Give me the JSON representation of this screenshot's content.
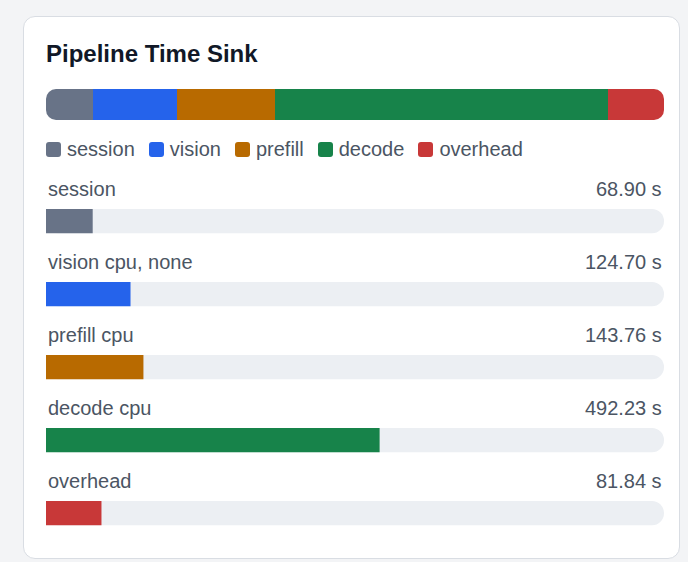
{
  "chart_data": [
    {
      "type": "bar",
      "title": "Pipeline Time Sink",
      "orientation": "horizontal",
      "stacked": true,
      "legend": "bottom",
      "tick_labels": false,
      "xlim": [
        0,
        911.83
      ],
      "categories": [
        null
      ],
      "series": [
        {
          "name": "session",
          "color": "#687387",
          "values": [
            68.9
          ]
        },
        {
          "name": "vision",
          "color": "#2563eb",
          "values": [
            124.7
          ]
        },
        {
          "name": "prefill",
          "color": "#b86a00",
          "values": [
            143.76
          ]
        },
        {
          "name": "decode",
          "color": "#17834a",
          "values": [
            492.23
          ]
        },
        {
          "name": "overhead",
          "color": "#c83838",
          "values": [
            81.84
          ]
        }
      ]
    },
    {
      "type": "bar",
      "orientation": "horizontal",
      "tick_labels": false,
      "data_labels": true,
      "xlim": [
        0,
        911.83
      ],
      "categories": [
        "session",
        "vision cpu, none",
        "prefill cpu",
        "decode cpu",
        "overhead"
      ],
      "values": [
        68.9,
        124.7,
        143.76,
        492.23,
        81.84
      ],
      "value_labels": [
        "68.90 s",
        "124.70 s",
        "143.76 s",
        "492.23 s",
        "81.84 s"
      ],
      "colors": [
        "#687387",
        "#2563eb",
        "#b86a00",
        "#17834a",
        "#c83838"
      ]
    }
  ]
}
